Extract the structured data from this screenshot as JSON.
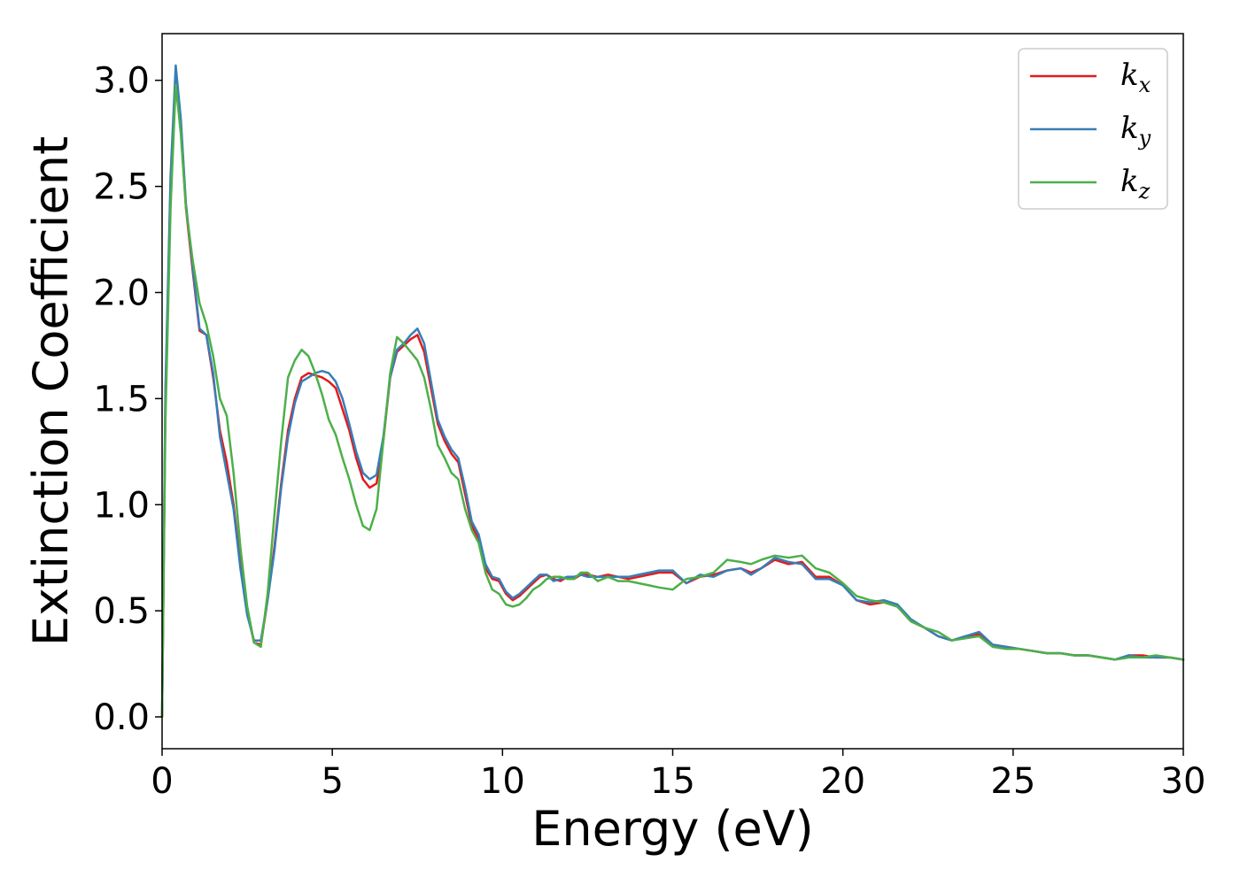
{
  "chart_data": {
    "type": "line",
    "title": "",
    "xlabel": "Energy (eV)",
    "ylabel": "Extinction Coefficient",
    "xlim": [
      0,
      30
    ],
    "ylim": [
      -0.15,
      3.22
    ],
    "xticks": [
      0,
      5,
      10,
      15,
      20,
      25,
      30
    ],
    "yticks": [
      0.0,
      0.5,
      1.0,
      1.5,
      2.0,
      2.5,
      3.0
    ],
    "grid": false,
    "legend_position": "top-right",
    "series": [
      {
        "name": "k_x",
        "legend_base": "k",
        "legend_sub": "x",
        "color": "#e41a1c",
        "x": [
          0,
          0.1,
          0.25,
          0.4,
          0.55,
          0.7,
          0.9,
          1.1,
          1.3,
          1.5,
          1.7,
          1.9,
          2.1,
          2.3,
          2.5,
          2.7,
          2.9,
          3.1,
          3.3,
          3.5,
          3.7,
          3.9,
          4.1,
          4.3,
          4.5,
          4.7,
          4.9,
          5.1,
          5.3,
          5.5,
          5.7,
          5.9,
          6.1,
          6.3,
          6.5,
          6.7,
          6.9,
          7.1,
          7.3,
          7.5,
          7.7,
          7.9,
          8.1,
          8.3,
          8.5,
          8.7,
          8.9,
          9.1,
          9.3,
          9.5,
          9.7,
          9.9,
          10.1,
          10.3,
          10.5,
          10.7,
          10.9,
          11.1,
          11.3,
          11.5,
          11.7,
          11.9,
          12.1,
          12.3,
          12.5,
          12.8,
          13.1,
          13.4,
          13.7,
          14.0,
          14.3,
          14.6,
          15.0,
          15.4,
          15.8,
          16.2,
          16.6,
          17.0,
          17.3,
          17.6,
          18.0,
          18.4,
          18.8,
          19.2,
          19.6,
          20.0,
          20.4,
          20.8,
          21.2,
          21.6,
          22.0,
          22.4,
          22.8,
          23.2,
          23.6,
          24.0,
          24.4,
          24.8,
          25.2,
          25.6,
          26.0,
          26.4,
          26.8,
          27.2,
          27.6,
          28.0,
          28.4,
          28.8,
          29.2,
          29.6,
          30.0
        ],
        "y": [
          0.0,
          1.5,
          2.5,
          3.05,
          2.8,
          2.4,
          2.1,
          1.82,
          1.8,
          1.6,
          1.35,
          1.2,
          1.0,
          0.72,
          0.5,
          0.35,
          0.34,
          0.55,
          0.8,
          1.1,
          1.35,
          1.5,
          1.6,
          1.62,
          1.61,
          1.6,
          1.58,
          1.55,
          1.45,
          1.35,
          1.22,
          1.12,
          1.08,
          1.1,
          1.3,
          1.6,
          1.72,
          1.75,
          1.78,
          1.8,
          1.72,
          1.55,
          1.38,
          1.3,
          1.24,
          1.2,
          1.05,
          0.9,
          0.84,
          0.7,
          0.65,
          0.64,
          0.58,
          0.55,
          0.57,
          0.6,
          0.63,
          0.66,
          0.67,
          0.65,
          0.64,
          0.66,
          0.65,
          0.67,
          0.67,
          0.66,
          0.67,
          0.66,
          0.65,
          0.66,
          0.67,
          0.68,
          0.68,
          0.63,
          0.66,
          0.67,
          0.69,
          0.7,
          0.68,
          0.7,
          0.74,
          0.72,
          0.73,
          0.66,
          0.66,
          0.62,
          0.55,
          0.53,
          0.54,
          0.52,
          0.45,
          0.42,
          0.38,
          0.36,
          0.38,
          0.39,
          0.34,
          0.33,
          0.32,
          0.31,
          0.3,
          0.3,
          0.29,
          0.29,
          0.28,
          0.27,
          0.29,
          0.29,
          0.28,
          0.28,
          0.27
        ]
      },
      {
        "name": "k_y",
        "legend_base": "k",
        "legend_sub": "y",
        "color": "#377eb8",
        "x": [
          0,
          0.1,
          0.25,
          0.4,
          0.55,
          0.7,
          0.9,
          1.1,
          1.3,
          1.5,
          1.7,
          1.9,
          2.1,
          2.3,
          2.5,
          2.7,
          2.9,
          3.1,
          3.3,
          3.5,
          3.7,
          3.9,
          4.1,
          4.3,
          4.5,
          4.7,
          4.9,
          5.1,
          5.3,
          5.5,
          5.7,
          5.9,
          6.1,
          6.3,
          6.5,
          6.7,
          6.9,
          7.1,
          7.3,
          7.5,
          7.7,
          7.9,
          8.1,
          8.3,
          8.5,
          8.7,
          8.9,
          9.1,
          9.3,
          9.5,
          9.7,
          9.9,
          10.1,
          10.3,
          10.5,
          10.7,
          10.9,
          11.1,
          11.3,
          11.5,
          11.7,
          11.9,
          12.1,
          12.3,
          12.5,
          12.8,
          13.1,
          13.4,
          13.7,
          14.0,
          14.3,
          14.6,
          15.0,
          15.4,
          15.8,
          16.2,
          16.6,
          17.0,
          17.3,
          17.6,
          18.0,
          18.4,
          18.8,
          19.2,
          19.6,
          20.0,
          20.4,
          20.8,
          21.2,
          21.6,
          22.0,
          22.4,
          22.8,
          23.2,
          23.6,
          24.0,
          24.4,
          24.8,
          25.2,
          25.6,
          26.0,
          26.4,
          26.8,
          27.2,
          27.6,
          28.0,
          28.4,
          28.8,
          29.2,
          29.6,
          30.0
        ],
        "y": [
          0.0,
          1.55,
          2.55,
          3.07,
          2.82,
          2.42,
          2.12,
          1.83,
          1.8,
          1.62,
          1.32,
          1.15,
          0.98,
          0.7,
          0.48,
          0.36,
          0.36,
          0.55,
          0.78,
          1.08,
          1.32,
          1.48,
          1.58,
          1.6,
          1.62,
          1.63,
          1.62,
          1.58,
          1.5,
          1.38,
          1.25,
          1.15,
          1.12,
          1.14,
          1.32,
          1.6,
          1.73,
          1.76,
          1.8,
          1.83,
          1.76,
          1.58,
          1.4,
          1.32,
          1.26,
          1.22,
          1.08,
          0.92,
          0.86,
          0.72,
          0.66,
          0.65,
          0.59,
          0.56,
          0.58,
          0.61,
          0.64,
          0.67,
          0.67,
          0.64,
          0.65,
          0.66,
          0.66,
          0.67,
          0.66,
          0.66,
          0.66,
          0.66,
          0.66,
          0.67,
          0.68,
          0.69,
          0.69,
          0.63,
          0.67,
          0.66,
          0.69,
          0.7,
          0.67,
          0.7,
          0.75,
          0.73,
          0.72,
          0.65,
          0.65,
          0.62,
          0.55,
          0.54,
          0.55,
          0.53,
          0.46,
          0.42,
          0.38,
          0.36,
          0.38,
          0.4,
          0.34,
          0.33,
          0.32,
          0.31,
          0.3,
          0.3,
          0.29,
          0.29,
          0.28,
          0.27,
          0.29,
          0.28,
          0.28,
          0.28,
          0.27
        ]
      },
      {
        "name": "k_z",
        "legend_base": "k",
        "legend_sub": "z",
        "color": "#4daf4a",
        "x": [
          0,
          0.1,
          0.25,
          0.4,
          0.55,
          0.7,
          0.9,
          1.1,
          1.3,
          1.5,
          1.7,
          1.9,
          2.1,
          2.3,
          2.5,
          2.7,
          2.9,
          3.1,
          3.3,
          3.5,
          3.7,
          3.9,
          4.1,
          4.3,
          4.5,
          4.7,
          4.9,
          5.1,
          5.3,
          5.5,
          5.7,
          5.9,
          6.1,
          6.3,
          6.5,
          6.7,
          6.9,
          7.1,
          7.3,
          7.5,
          7.7,
          7.9,
          8.1,
          8.3,
          8.5,
          8.7,
          8.9,
          9.1,
          9.3,
          9.5,
          9.7,
          9.9,
          10.1,
          10.3,
          10.5,
          10.7,
          10.9,
          11.1,
          11.3,
          11.5,
          11.7,
          11.9,
          12.1,
          12.3,
          12.5,
          12.8,
          13.1,
          13.4,
          13.7,
          14.0,
          14.3,
          14.6,
          15.0,
          15.4,
          15.8,
          16.2,
          16.6,
          17.0,
          17.3,
          17.6,
          18.0,
          18.4,
          18.8,
          19.2,
          19.6,
          20.0,
          20.4,
          20.8,
          21.2,
          21.6,
          22.0,
          22.4,
          22.8,
          23.2,
          23.6,
          24.0,
          24.4,
          24.8,
          25.2,
          25.6,
          26.0,
          26.4,
          26.8,
          27.2,
          27.6,
          28.0,
          28.4,
          28.8,
          29.2,
          29.6,
          30.0
        ],
        "y": [
          0.0,
          1.4,
          2.4,
          2.98,
          2.75,
          2.4,
          2.15,
          1.95,
          1.85,
          1.7,
          1.5,
          1.42,
          1.15,
          0.8,
          0.52,
          0.35,
          0.33,
          0.58,
          0.95,
          1.3,
          1.6,
          1.68,
          1.73,
          1.7,
          1.62,
          1.52,
          1.4,
          1.33,
          1.22,
          1.12,
          1.0,
          0.9,
          0.88,
          0.98,
          1.3,
          1.62,
          1.79,
          1.76,
          1.72,
          1.68,
          1.6,
          1.45,
          1.28,
          1.22,
          1.15,
          1.12,
          0.98,
          0.88,
          0.82,
          0.68,
          0.6,
          0.58,
          0.53,
          0.52,
          0.53,
          0.56,
          0.6,
          0.62,
          0.65,
          0.66,
          0.66,
          0.65,
          0.65,
          0.68,
          0.68,
          0.64,
          0.66,
          0.64,
          0.64,
          0.63,
          0.62,
          0.61,
          0.6,
          0.65,
          0.66,
          0.68,
          0.74,
          0.73,
          0.72,
          0.74,
          0.76,
          0.75,
          0.76,
          0.7,
          0.68,
          0.63,
          0.57,
          0.55,
          0.54,
          0.52,
          0.45,
          0.42,
          0.4,
          0.36,
          0.37,
          0.38,
          0.33,
          0.32,
          0.32,
          0.31,
          0.3,
          0.3,
          0.29,
          0.29,
          0.28,
          0.27,
          0.28,
          0.28,
          0.29,
          0.28,
          0.27
        ]
      }
    ]
  }
}
